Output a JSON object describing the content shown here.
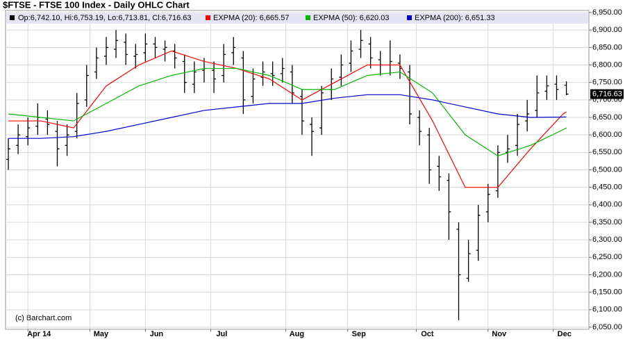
{
  "chart_data": {
    "type": "ohlc",
    "title": "$FTSE - FTSE 100 Index - Daily OHLC Chart",
    "ohlc_legend": "Op:6,742.10, Hi:6,753.19, Lo:6,713.81, Cl:6,716.63",
    "ohlc_color": "#000000",
    "watermark": "(c) Barchart.com",
    "last_price": {
      "value": 6716.63,
      "label": "6,716.63"
    },
    "grid": true,
    "xlim": [
      -0.85,
      177.9
    ],
    "xticks": [
      {
        "value": 6,
        "label": "Apr 14"
      },
      {
        "value": 25,
        "label": "May"
      },
      {
        "value": 42,
        "label": "Jun"
      },
      {
        "value": 62,
        "label": "Jul"
      },
      {
        "value": 85,
        "label": "Aug"
      },
      {
        "value": 104,
        "label": "Sep"
      },
      {
        "value": 125,
        "label": "Oct"
      },
      {
        "value": 147,
        "label": "Nov"
      },
      {
        "value": 167,
        "label": "Dec"
      }
    ],
    "ylim": [
      6045,
      6955
    ],
    "yticks": [
      {
        "value": 6050,
        "label": "6,050.00"
      },
      {
        "value": 6100,
        "label": "6,100.00"
      },
      {
        "value": 6150,
        "label": "6,150.00"
      },
      {
        "value": 6200,
        "label": "6,200.00"
      },
      {
        "value": 6250,
        "label": "6,250.00"
      },
      {
        "value": 6300,
        "label": "6,300.00"
      },
      {
        "value": 6350,
        "label": "6,350.00"
      },
      {
        "value": 6400,
        "label": "6,400.00"
      },
      {
        "value": 6450,
        "label": "6,450.00"
      },
      {
        "value": 6500,
        "label": "6,500.00"
      },
      {
        "value": 6550,
        "label": "6,550.00"
      },
      {
        "value": 6600,
        "label": "6,600.00"
      },
      {
        "value": 6650,
        "label": "6,650.00"
      },
      {
        "value": 6700,
        "label": "6,700.00"
      },
      {
        "value": 6750,
        "label": "6,750.00"
      },
      {
        "value": 6800,
        "label": "6,800.00"
      },
      {
        "value": 6850,
        "label": "6,850.00"
      },
      {
        "value": 6900,
        "label": "6,900.00"
      },
      {
        "value": 6950,
        "label": "6,950.00"
      }
    ],
    "x": [
      0,
      3,
      6,
      9,
      12,
      15,
      18,
      21,
      24,
      27,
      30,
      33,
      36,
      39,
      42,
      45,
      48,
      51,
      54,
      57,
      60,
      63,
      66,
      69,
      72,
      75,
      78,
      81,
      84,
      87,
      90,
      93,
      96,
      99,
      102,
      105,
      108,
      111,
      114,
      117,
      120,
      123,
      126,
      129,
      132,
      135,
      138,
      141,
      144,
      147,
      150,
      153,
      156,
      159,
      162,
      165,
      168,
      171
    ],
    "open": [
      6530,
      6570,
      6595,
      6625,
      6645,
      6610,
      6570,
      6610,
      6700,
      6780,
      6825,
      6845,
      6865,
      6825,
      6835,
      6860,
      6845,
      6840,
      6810,
      6745,
      6785,
      6785,
      6770,
      6835,
      6820,
      6710,
      6765,
      6775,
      6775,
      6780,
      6710,
      6630,
      6620,
      6730,
      6765,
      6805,
      6845,
      6860,
      6815,
      6800,
      6805,
      6780,
      6650,
      6600,
      6510,
      6470,
      6330,
      6190,
      6270,
      6380,
      6440,
      6550,
      6570,
      6640,
      6670,
      6725,
      6745,
      6742.1
    ],
    "high": [
      6590,
      6630,
      6650,
      6690,
      6670,
      6640,
      6630,
      6720,
      6800,
      6850,
      6880,
      6900,
      6890,
      6860,
      6890,
      6880,
      6870,
      6860,
      6830,
      6810,
      6820,
      6810,
      6860,
      6880,
      6840,
      6790,
      6810,
      6810,
      6820,
      6800,
      6730,
      6650,
      6740,
      6790,
      6830,
      6870,
      6900,
      6880,
      6840,
      6870,
      6830,
      6800,
      6670,
      6620,
      6540,
      6490,
      6350,
      6300,
      6400,
      6460,
      6570,
      6600,
      6660,
      6700,
      6770,
      6770,
      6770,
      6753.19
    ],
    "low": [
      6500,
      6545,
      6570,
      6600,
      6600,
      6510,
      6540,
      6590,
      6680,
      6760,
      6800,
      6820,
      6800,
      6790,
      6810,
      6820,
      6810,
      6790,
      6720,
      6720,
      6750,
      6720,
      6750,
      6800,
      6660,
      6690,
      6740,
      6740,
      6750,
      6690,
      6600,
      6540,
      6600,
      6700,
      6740,
      6780,
      6820,
      6790,
      6770,
      6770,
      6760,
      6630,
      6570,
      6460,
      6440,
      6300,
      6070,
      6180,
      6240,
      6350,
      6420,
      6520,
      6540,
      6610,
      6650,
      6700,
      6700,
      6713.81
    ],
    "close": [
      6560,
      6600,
      6620,
      6650,
      6630,
      6560,
      6600,
      6690,
      6770,
      6820,
      6850,
      6870,
      6830,
      6830,
      6860,
      6850,
      6850,
      6820,
      6750,
      6780,
      6790,
      6760,
      6830,
      6850,
      6700,
      6760,
      6780,
      6770,
      6790,
      6720,
      6640,
      6610,
      6720,
      6760,
      6800,
      6840,
      6870,
      6820,
      6800,
      6810,
      6790,
      6660,
      6610,
      6500,
      6480,
      6380,
      6200,
      6260,
      6370,
      6430,
      6550,
      6560,
      6630,
      6660,
      6720,
      6740,
      6730,
      6716.63
    ],
    "series": [
      {
        "name": "EXPMA (20): 6,665.57",
        "color": "#ff0000",
        "x": [
          0,
          10,
          20,
          30,
          40,
          50,
          60,
          70,
          80,
          90,
          100,
          110,
          120,
          130,
          140,
          150,
          160,
          170,
          171
        ],
        "values": [
          6640,
          6640,
          6620,
          6740,
          6800,
          6840,
          6810,
          6790,
          6760,
          6700,
          6750,
          6800,
          6800,
          6640,
          6450,
          6450,
          6560,
          6660,
          6665.57
        ]
      },
      {
        "name": "EXPMA (50): 6,620.03",
        "color": "#00bb00",
        "x": [
          0,
          10,
          20,
          30,
          40,
          50,
          60,
          70,
          80,
          90,
          100,
          110,
          120,
          130,
          140,
          150,
          160,
          170,
          171
        ],
        "values": [
          6660,
          6650,
          6640,
          6690,
          6740,
          6770,
          6790,
          6790,
          6770,
          6730,
          6730,
          6770,
          6780,
          6720,
          6600,
          6540,
          6570,
          6615,
          6620.03
        ]
      },
      {
        "name": "EXPMA (200): 6,651.33",
        "color": "#0000cc",
        "x": [
          0,
          10,
          20,
          30,
          40,
          50,
          60,
          70,
          80,
          90,
          100,
          110,
          120,
          130,
          140,
          150,
          160,
          170,
          171
        ],
        "values": [
          6590,
          6590,
          6595,
          6610,
          6630,
          6650,
          6670,
          6680,
          6690,
          6690,
          6705,
          6715,
          6715,
          6700,
          6680,
          6660,
          6650,
          6651,
          6651.33
        ]
      }
    ]
  }
}
